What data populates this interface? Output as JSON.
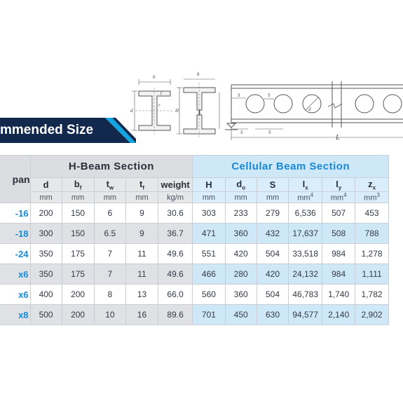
{
  "banner": {
    "title": "mmended Size"
  },
  "drawings": {
    "section_labels": {
      "b": "b",
      "bf": "b",
      "tw": "t",
      "tf": "t",
      "d": "d",
      "r": "r",
      "H": "H",
      "S": "S",
      "do": "d"
    },
    "beam_labels": {
      "Se": "S",
      "Si": "S",
      "S1": "S",
      "S": "S",
      "do": "d",
      "L": "L"
    }
  },
  "table": {
    "group_span": "pan",
    "group_h": "H-Beam Section",
    "group_c": "Cellular Beam Section",
    "columns": [
      {
        "sym": "d",
        "sub": "",
        "unit": "mm",
        "group": "h"
      },
      {
        "sym": "b",
        "sub": "f",
        "unit": "mm",
        "group": "h"
      },
      {
        "sym": "t",
        "sub": "w",
        "unit": "mm",
        "group": "h"
      },
      {
        "sym": "t",
        "sub": "f",
        "unit": "mm",
        "group": "h"
      },
      {
        "sym": "weight",
        "sub": "",
        "unit": "kg/m",
        "group": "h"
      },
      {
        "sym": "H",
        "sub": "",
        "unit": "mm",
        "group": "c"
      },
      {
        "sym": "d",
        "sub": "o",
        "unit": "mm",
        "group": "c"
      },
      {
        "sym": "S",
        "sub": "",
        "unit": "mm",
        "group": "c"
      },
      {
        "sym": "I",
        "sub": "x",
        "unit": "mm",
        "unit_sup": "4",
        "group": "c"
      },
      {
        "sym": "I",
        "sub": "y",
        "unit": "mm",
        "unit_sup": "4",
        "group": "c"
      },
      {
        "sym": "z",
        "sub": "x",
        "unit": "mm",
        "unit_sup": "3",
        "group": "c"
      }
    ],
    "rows": [
      {
        "span": "-16",
        "style": "light",
        "values": [
          "200",
          "150",
          "6",
          "9",
          "30.6",
          "303",
          "233",
          "279",
          "6,536",
          "507",
          "453"
        ]
      },
      {
        "span": "-18",
        "style": "dark",
        "values": [
          "300",
          "150",
          "6.5",
          "9",
          "36.7",
          "471",
          "360",
          "432",
          "17,637",
          "508",
          "788"
        ]
      },
      {
        "span": "-24",
        "style": "light",
        "values": [
          "350",
          "175",
          "7",
          "11",
          "49.6",
          "551",
          "420",
          "504",
          "33,518",
          "984",
          "1,278"
        ]
      },
      {
        "span": "x6",
        "style": "dark",
        "values": [
          "350",
          "175",
          "7",
          "11",
          "49.6",
          "466",
          "280",
          "420",
          "24,132",
          "984",
          "1,111"
        ]
      },
      {
        "span": "x6",
        "style": "light",
        "values": [
          "400",
          "200",
          "8",
          "13",
          "66.0",
          "560",
          "360",
          "504",
          "46,783",
          "1,740",
          "1,782"
        ]
      },
      {
        "span": "x8",
        "style": "dark",
        "values": [
          "500",
          "200",
          "10",
          "16",
          "89.6",
          "701",
          "450",
          "630",
          "94,577",
          "2,140",
          "2,902"
        ]
      }
    ]
  },
  "colors": {
    "banner_bg": "#12284c",
    "banner_accent": "#12a6e0",
    "cellular_header_text": "#1789d6",
    "cellular_header_bg": "#cfe8f8",
    "hbeam_header_bg": "#dcdde0"
  }
}
